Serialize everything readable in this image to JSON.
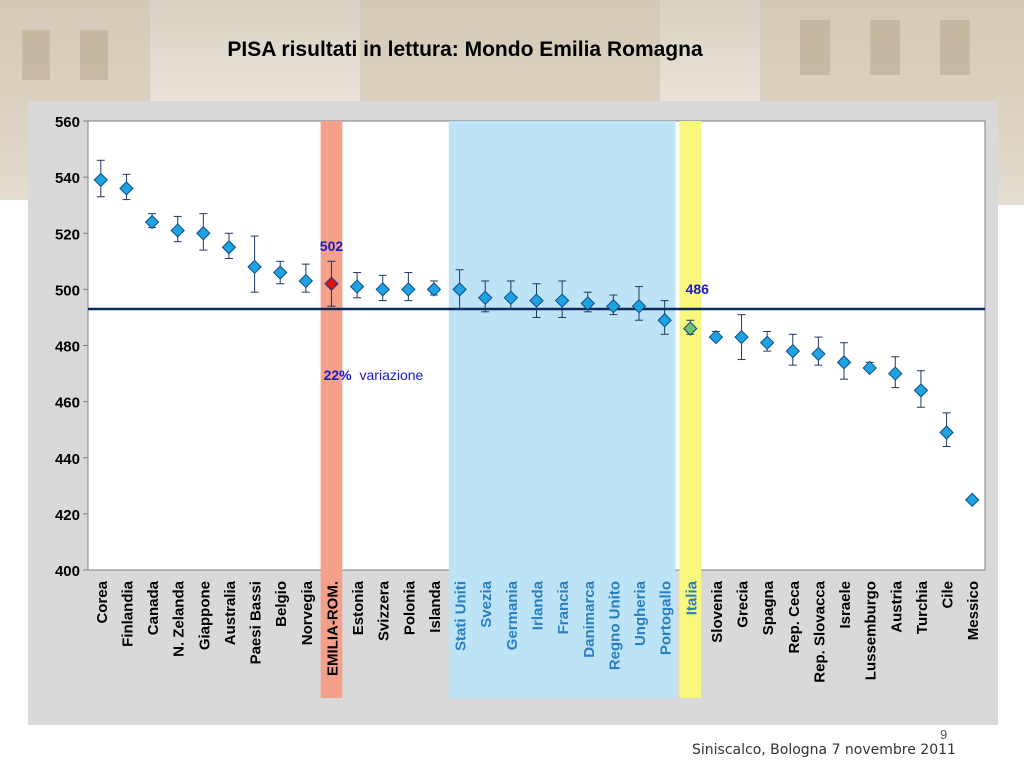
{
  "slide": {
    "title": "PISA risultati in lettura: Mondo  Emilia Romagna",
    "page_number": "9",
    "footer": "Siniscalco, Bologna 7 novembre 2011"
  },
  "colors": {
    "point": "#1fa3e0",
    "point_stroke": "#0b4a8a",
    "highlight_point": "#e01010",
    "italia_point": "#6cc36c",
    "band_emilia": "#f4a08a",
    "band_middle": "#bde3f7",
    "band_italia": "#f8f87c",
    "ref_line": "#0d2a5a",
    "label_blue": "#2a7fc0",
    "annotation": "#1a1acc"
  },
  "chart_data": {
    "type": "scatter",
    "categories": [
      "Corea",
      "Finlandia",
      "Canada",
      "N. Zelanda",
      "Giappone",
      "Australia",
      "Paesi Bassi",
      "Belgio",
      "Norvegia",
      "EMILIA-ROM.",
      "Estonia",
      "Svizzera",
      "Polonia",
      "Islanda",
      "Stati Uniti",
      "Svezia",
      "Germania",
      "Irlanda",
      "Francia",
      "Danimarca",
      "Regno Unito",
      "Ungheria",
      "Portogallo",
      "Italia",
      "Slovenia",
      "Grecia",
      "Spagna",
      "Rep. Ceca",
      "Rep. Slovacca",
      "Israele",
      "Lussemburgo",
      "Austria",
      "Turchia",
      "Cile",
      "Messico"
    ],
    "values": [
      539,
      536,
      524,
      521,
      520,
      515,
      508,
      506,
      503,
      502,
      501,
      500,
      500,
      500,
      500,
      497,
      497,
      496,
      496,
      495,
      494,
      494,
      489,
      486,
      483,
      483,
      481,
      478,
      477,
      474,
      472,
      470,
      464,
      449,
      425
    ],
    "error_low": [
      533,
      532,
      522,
      517,
      514,
      511,
      499,
      502,
      499,
      494,
      497,
      496,
      496,
      498,
      493,
      492,
      493,
      490,
      490,
      492,
      491,
      489,
      484,
      484,
      482,
      475,
      478,
      473,
      473,
      468,
      471,
      465,
      458,
      444,
      425
    ],
    "error_high": [
      546,
      541,
      527,
      526,
      527,
      520,
      519,
      510,
      509,
      510,
      506,
      505,
      506,
      503,
      507,
      503,
      503,
      502,
      503,
      499,
      498,
      501,
      496,
      489,
      485,
      491,
      485,
      484,
      483,
      481,
      474,
      476,
      471,
      456,
      425
    ],
    "ylim": [
      400,
      560
    ],
    "yticks": [
      400,
      420,
      440,
      460,
      480,
      500,
      520,
      540,
      560
    ],
    "reference_line": 493,
    "highlight_category": "EMILIA-ROM.",
    "italia_category": "Italia",
    "blue_label_range": [
      "Stati Uniti",
      "Portogallo"
    ],
    "bands": [
      {
        "from": "EMILIA-ROM.",
        "to": "EMILIA-ROM.",
        "color": "band_emilia"
      },
      {
        "from": "Stati Uniti",
        "to": "Portogallo",
        "color": "band_middle"
      },
      {
        "from": "Italia",
        "to": "Italia",
        "color": "band_italia"
      }
    ],
    "annotations": {
      "emilia_value": "502",
      "italia_value": "486",
      "variation_pct": "22%",
      "variation_word": "variazione"
    },
    "grid": false,
    "legend": "none"
  }
}
